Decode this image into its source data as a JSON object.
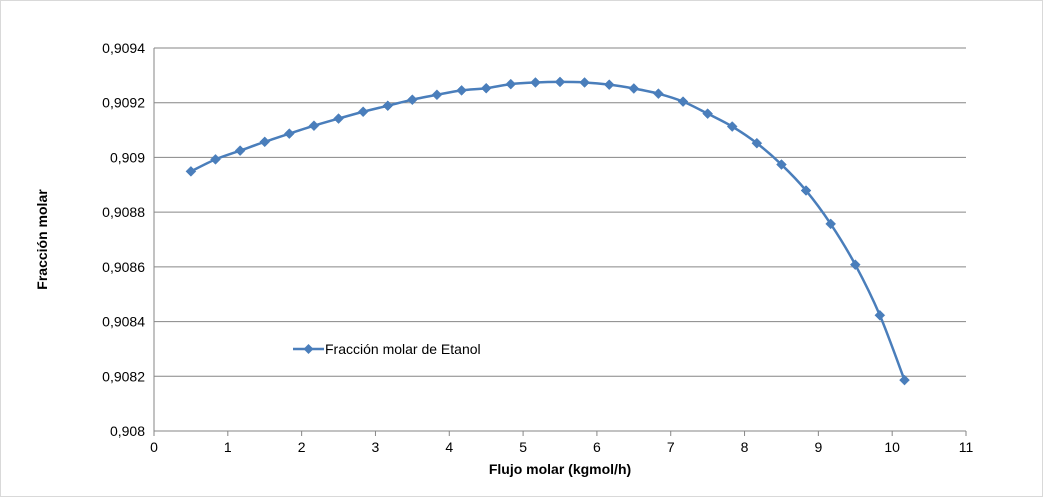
{
  "chart_data": {
    "type": "line",
    "title": "",
    "xlabel": "Flujo molar (kgmol/h)",
    "ylabel": "Fracción molar",
    "xlim": [
      0,
      11
    ],
    "ylim": [
      0.908,
      0.9094
    ],
    "x_ticks": [
      0,
      1,
      2,
      3,
      4,
      5,
      6,
      7,
      8,
      9,
      10,
      11
    ],
    "y_ticks": [
      0.908,
      0.9082,
      0.9084,
      0.9086,
      0.9088,
      0.909,
      0.9092,
      0.9094
    ],
    "x_tick_labels": [
      "0",
      "1",
      "2",
      "3",
      "4",
      "5",
      "6",
      "7",
      "8",
      "9",
      "10",
      "11"
    ],
    "y_tick_labels": [
      "0,908",
      "0,9082",
      "0,9084",
      "0,9086",
      "0,9088",
      "0,909",
      "0,9092",
      "0,9094"
    ],
    "grid": "horizontal",
    "legend_position": "left-middle inside plot",
    "series": [
      {
        "name": "Fracción molar de Etanol",
        "color": "#4a7ebb",
        "marker": "diamond",
        "x": [
          0.5,
          0.833,
          1.167,
          1.5,
          1.833,
          2.167,
          2.5,
          2.833,
          3.167,
          3.5,
          3.833,
          4.167,
          4.5,
          4.833,
          5.167,
          5.5,
          5.833,
          6.167,
          6.5,
          6.833,
          7.167,
          7.5,
          7.833,
          8.167,
          8.5,
          8.833,
          9.167,
          9.5,
          9.833,
          10.167
        ],
        "y": [
          0.908949,
          0.908993,
          0.909025,
          0.909057,
          0.909087,
          0.909116,
          0.909142,
          0.909167,
          0.909189,
          0.909211,
          0.909229,
          0.909245,
          0.909253,
          0.909268,
          0.909274,
          0.909276,
          0.909274,
          0.909266,
          0.909252,
          0.909233,
          0.909204,
          0.90916,
          0.909113,
          0.909052,
          0.908974,
          0.908879,
          0.908757,
          0.908608,
          0.908423,
          0.908186
        ]
      }
    ]
  }
}
